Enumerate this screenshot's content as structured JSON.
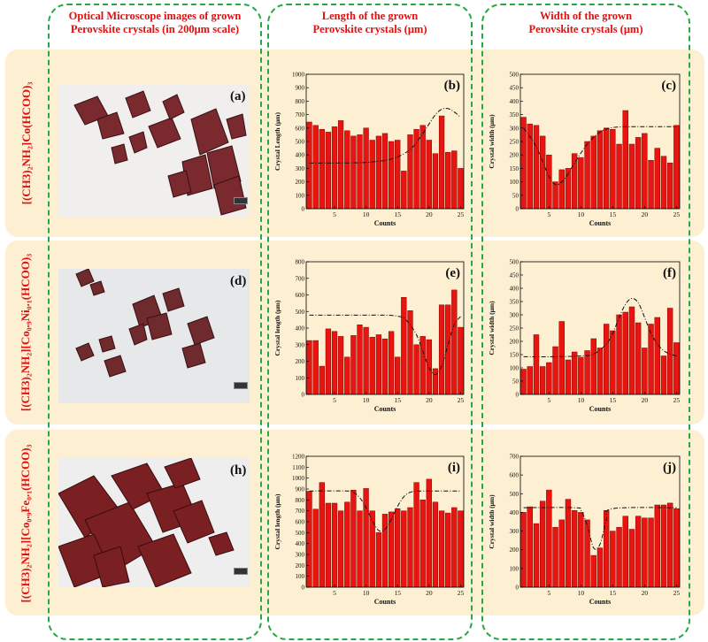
{
  "headers": {
    "col1": [
      "Optical Microscope images of grown",
      "Perovskite crystals (in 200μm scale)"
    ],
    "col2": [
      "Length of the grown",
      "Perovskite crystals (μm)"
    ],
    "col3": [
      "Width of the grown",
      "Perovskite crystals (μm)"
    ]
  },
  "rows": {
    "r1": "[(CH3)₂NH₂]Co(HCOO)₃",
    "r2": "[(CH3)₂NH₂][Co₀.₉Ni₀.₁(HCOO)₃",
    "r3": "[(CH3)₂NH₂][Co₀.₉Fe₀.₁(HCOO)₃"
  },
  "photo_labels": {
    "a": "(a)",
    "d": "(d)",
    "h": "(h)"
  },
  "colors": {
    "bar": "#e8140f",
    "bar_edge": "#8a0000",
    "header": "#e01010",
    "dash": "#27a844",
    "row_bg": "#fcefd2"
  },
  "chart_data": [
    {
      "id": "b",
      "panel_label": "(b)",
      "type": "bar",
      "xlabel": "Counts",
      "ylabel": "Crystal Length (μm)",
      "ylim": [
        0,
        1000
      ],
      "yticks": [
        0,
        100,
        200,
        300,
        400,
        500,
        600,
        700,
        800,
        900,
        1000
      ],
      "xticks": [
        5,
        10,
        15,
        20,
        25
      ],
      "x": [
        1,
        2,
        3,
        4,
        5,
        6,
        7,
        8,
        9,
        10,
        11,
        12,
        13,
        14,
        15,
        16,
        17,
        18,
        19,
        20,
        21,
        22,
        23,
        24,
        25
      ],
      "values": [
        645,
        620,
        590,
        570,
        610,
        655,
        580,
        540,
        550,
        600,
        510,
        540,
        560,
        500,
        510,
        280,
        550,
        590,
        620,
        510,
        410,
        690,
        420,
        430,
        300
      ],
      "fit": {
        "x": [
          1,
          6,
          10,
          14,
          17,
          19,
          20,
          21,
          22,
          23,
          24,
          25
        ],
        "y": [
          340,
          340,
          345,
          370,
          440,
          560,
          630,
          700,
          740,
          745,
          720,
          680
        ]
      }
    },
    {
      "id": "c",
      "panel_label": "(c)",
      "type": "bar",
      "xlabel": "Counts",
      "ylabel": "Crystal width (μm)",
      "ylim": [
        0,
        500
      ],
      "yticks": [
        0,
        50,
        100,
        150,
        200,
        250,
        300,
        350,
        400,
        450,
        500
      ],
      "xticks": [
        5,
        10,
        15,
        20,
        25
      ],
      "x": [
        1,
        2,
        3,
        4,
        5,
        6,
        7,
        8,
        9,
        10,
        11,
        12,
        13,
        14,
        15,
        16,
        17,
        18,
        19,
        20,
        21,
        22,
        23,
        24,
        25
      ],
      "values": [
        340,
        315,
        310,
        270,
        200,
        100,
        145,
        150,
        205,
        190,
        250,
        270,
        290,
        300,
        295,
        240,
        365,
        240,
        265,
        280,
        180,
        225,
        195,
        170,
        310
      ],
      "fit": {
        "x": [
          1,
          3,
          5,
          6,
          7,
          8,
          9,
          11,
          13,
          15,
          18,
          21,
          25
        ],
        "y": [
          300,
          230,
          120,
          90,
          100,
          130,
          170,
          240,
          285,
          302,
          305,
          305,
          305
        ]
      }
    },
    {
      "id": "e",
      "panel_label": "(e)",
      "type": "bar",
      "xlabel": "Counts",
      "ylabel": "Crystal length (μm)",
      "ylim": [
        0,
        800
      ],
      "yticks": [
        0,
        100,
        200,
        300,
        400,
        500,
        600,
        700,
        800
      ],
      "xticks": [
        5,
        10,
        15,
        20,
        25
      ],
      "x": [
        1,
        2,
        3,
        4,
        5,
        6,
        7,
        8,
        9,
        10,
        11,
        12,
        13,
        14,
        15,
        16,
        17,
        18,
        19,
        20,
        21,
        22,
        23,
        24,
        25
      ],
      "values": [
        325,
        325,
        170,
        395,
        380,
        350,
        225,
        355,
        420,
        405,
        345,
        360,
        335,
        380,
        225,
        585,
        505,
        300,
        350,
        330,
        155,
        540,
        540,
        630,
        405
      ],
      "fit": {
        "x": [
          1,
          8,
          13,
          15,
          16,
          17,
          18,
          19,
          20,
          21,
          22,
          23,
          24,
          25
        ],
        "y": [
          478,
          478,
          478,
          472,
          460,
          420,
          360,
          260,
          160,
          120,
          170,
          300,
          420,
          470
        ]
      }
    },
    {
      "id": "f",
      "panel_label": "(f)",
      "type": "bar",
      "xlabel": "Counts",
      "ylabel": "Crystal width (μm)",
      "ylim": [
        0,
        500
      ],
      "yticks": [
        0,
        50,
        100,
        150,
        200,
        250,
        300,
        350,
        400,
        450,
        500
      ],
      "xticks": [
        5,
        10,
        15,
        20,
        25
      ],
      "x": [
        1,
        2,
        3,
        4,
        5,
        6,
        7,
        8,
        9,
        10,
        11,
        12,
        13,
        14,
        15,
        16,
        17,
        18,
        19,
        20,
        21,
        22,
        23,
        24,
        25
      ],
      "values": [
        95,
        105,
        225,
        105,
        120,
        180,
        275,
        130,
        160,
        140,
        165,
        210,
        175,
        265,
        240,
        300,
        310,
        330,
        270,
        175,
        265,
        290,
        145,
        325,
        195
      ],
      "fit": {
        "x": [
          1,
          6,
          10,
          12,
          14,
          15,
          16,
          17,
          18,
          19,
          20,
          21,
          22,
          23,
          24,
          25
        ],
        "y": [
          142,
          142,
          145,
          152,
          190,
          230,
          290,
          340,
          362,
          345,
          290,
          230,
          190,
          165,
          152,
          145
        ]
      }
    },
    {
      "id": "i",
      "panel_label": "(i)",
      "type": "bar",
      "xlabel": "Counts",
      "ylabel": "Crystal length (μm)",
      "ylim": [
        0,
        1200
      ],
      "yticks": [
        0,
        100,
        200,
        300,
        400,
        500,
        600,
        700,
        800,
        900,
        1000,
        1100,
        1200
      ],
      "xticks": [
        5,
        10,
        15,
        20,
        25
      ],
      "x": [
        1,
        2,
        3,
        4,
        5,
        6,
        7,
        8,
        9,
        10,
        11,
        12,
        13,
        14,
        15,
        16,
        17,
        18,
        19,
        20,
        21,
        22,
        23,
        24,
        25
      ],
      "values": [
        880,
        715,
        960,
        770,
        770,
        700,
        780,
        890,
        700,
        905,
        700,
        500,
        670,
        690,
        720,
        700,
        730,
        960,
        800,
        990,
        780,
        700,
        680,
        730,
        700
      ],
      "fit": {
        "x": [
          1,
          7,
          8,
          9,
          10,
          11,
          12,
          13,
          14,
          15,
          16,
          17,
          18,
          19,
          25
        ],
        "y": [
          882,
          882,
          870,
          820,
          730,
          610,
          520,
          530,
          620,
          740,
          830,
          870,
          880,
          882,
          882
        ]
      }
    },
    {
      "id": "j",
      "panel_label": "(j)",
      "type": "bar",
      "xlabel": "Counts",
      "ylabel": "Crystal width (μm)",
      "ylim": [
        0,
        700
      ],
      "yticks": [
        0,
        100,
        200,
        300,
        400,
        500,
        600,
        700
      ],
      "xticks": [
        5,
        10,
        15,
        20,
        25
      ],
      "x": [
        1,
        2,
        3,
        4,
        5,
        6,
        7,
        8,
        9,
        10,
        11,
        12,
        13,
        14,
        15,
        16,
        17,
        18,
        19,
        20,
        21,
        22,
        23,
        24,
        25
      ],
      "values": [
        400,
        430,
        340,
        460,
        520,
        320,
        360,
        470,
        410,
        400,
        360,
        170,
        210,
        410,
        300,
        320,
        380,
        310,
        380,
        370,
        370,
        440,
        440,
        450,
        420
      ],
      "fit": {
        "x": [
          1,
          9,
          10,
          11,
          12,
          13,
          14,
          15,
          25
        ],
        "y": [
          425,
          425,
          410,
          330,
          210,
          230,
          360,
          420,
          425
        ]
      }
    }
  ]
}
